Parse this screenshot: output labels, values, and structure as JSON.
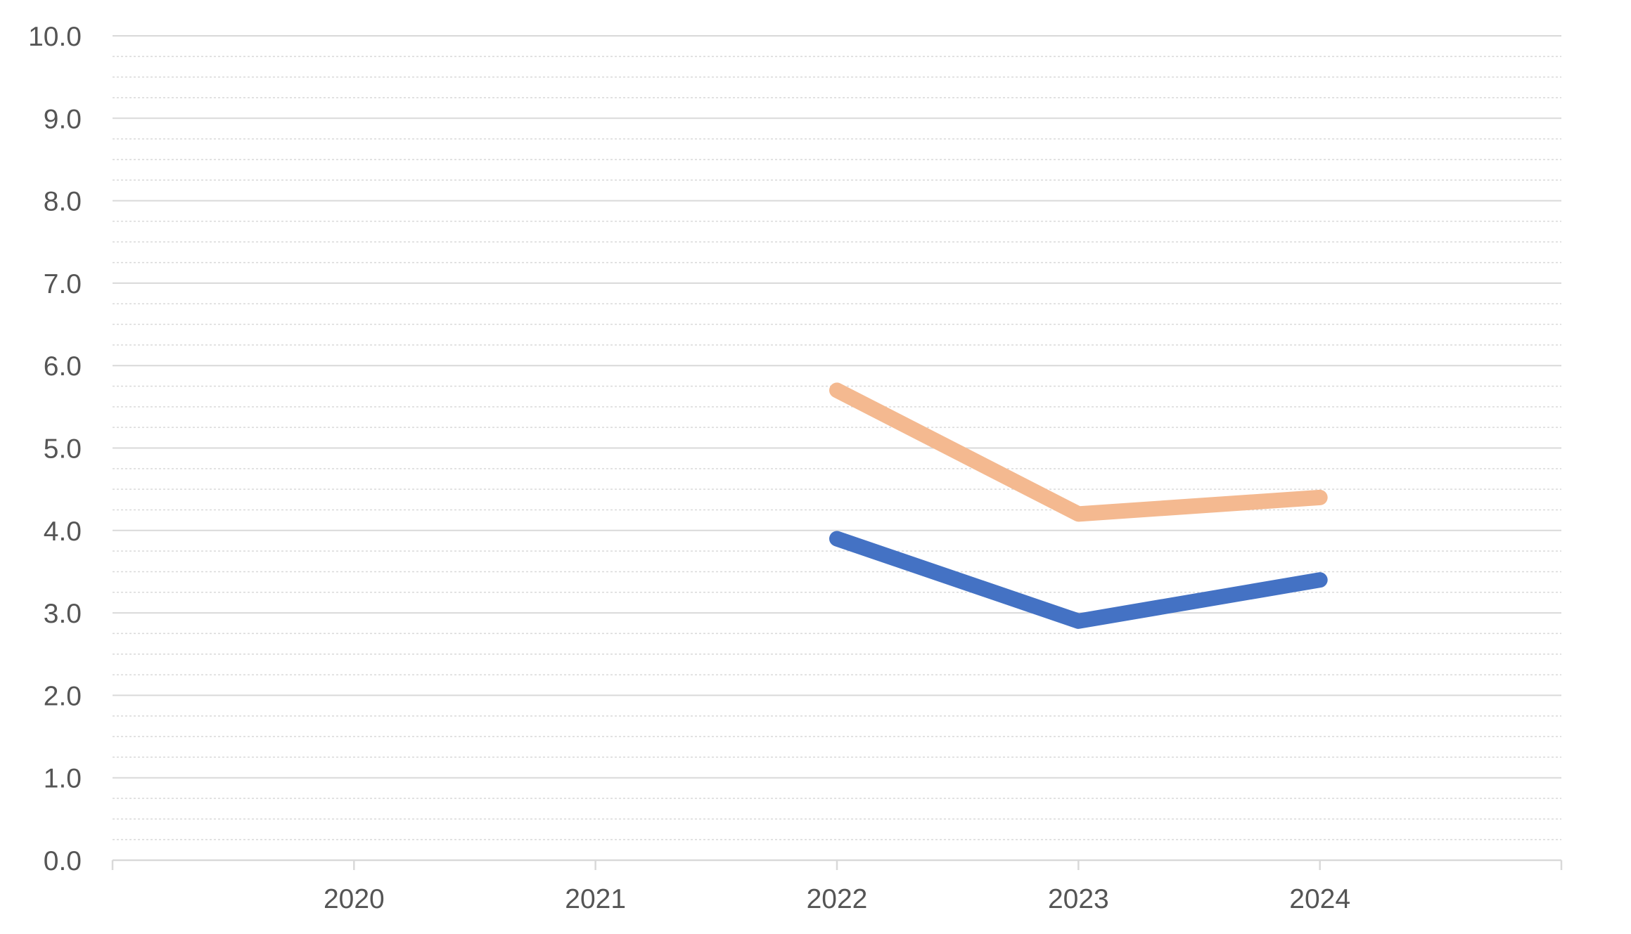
{
  "chart_data": {
    "type": "line",
    "categories": [
      "",
      "2020",
      "2021",
      "2022",
      "2023",
      "2024",
      ""
    ],
    "x": [
      "",
      "2020",
      "2021",
      "2022",
      "2023",
      "2024",
      ""
    ],
    "ylim": [
      0,
      10
    ],
    "ymajor_step": 1,
    "yminor_step": 0.25,
    "y_tick_labels": [
      "0.0",
      "1.0",
      "2.0",
      "3.0",
      "4.0",
      "5.0",
      "6.0",
      "7.0",
      "8.0",
      "9.0",
      "10.0"
    ],
    "x_tick_labels": [
      "2020",
      "2021",
      "2022",
      "2023",
      "2024"
    ],
    "grid": true,
    "legend": "none",
    "series": [
      {
        "color": "#f4b990",
        "values": [
          null,
          null,
          null,
          5.7,
          4.2,
          4.4,
          null
        ]
      },
      {
        "color": "#4472c4",
        "values": [
          null,
          null,
          null,
          3.9,
          2.9,
          3.4,
          null
        ]
      }
    ]
  }
}
